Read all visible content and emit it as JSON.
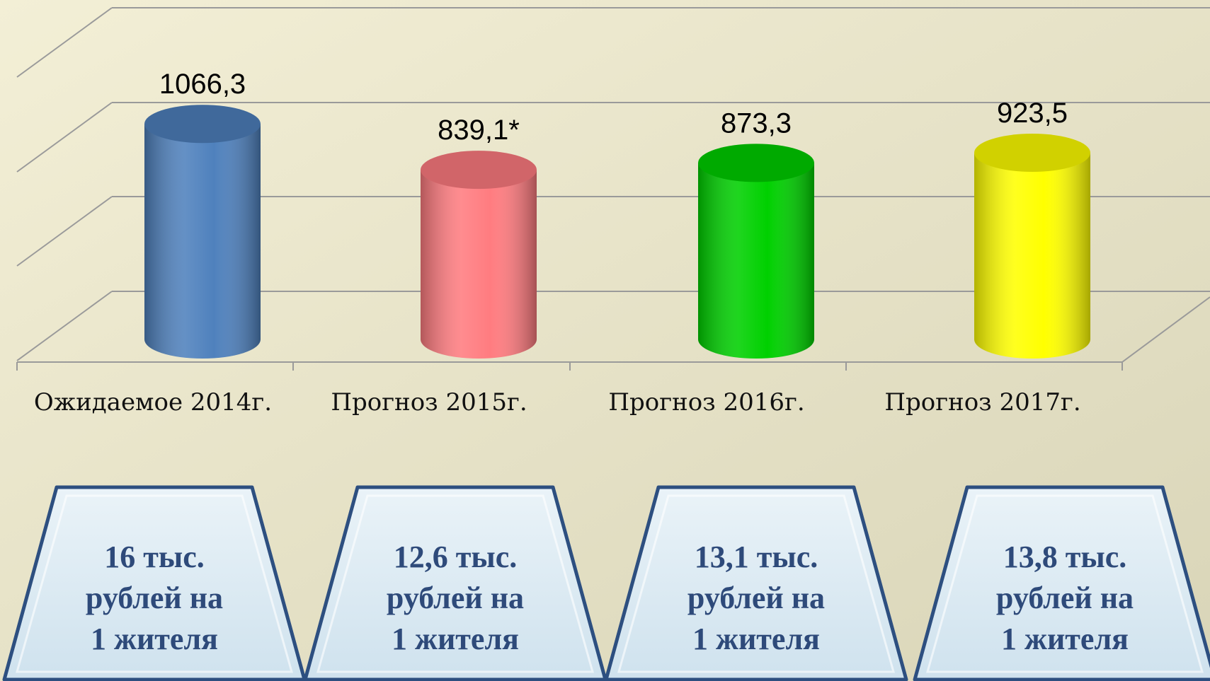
{
  "chart_data": {
    "type": "cylinder",
    "categories": [
      "Ожидаемое 2014г.",
      "Прогноз 2015г.",
      "Прогноз 2016г.",
      "Прогноз 2017г."
    ],
    "series": [
      {
        "values": [
          1066.3,
          839.1,
          873.3,
          923.5
        ],
        "value_labels": [
          "1066,3",
          "839,1*",
          "873,3",
          "923,5"
        ],
        "colors": [
          "#4f81bd",
          "#ff7c80",
          "#00d000",
          "#ffff00"
        ]
      }
    ],
    "ylim": [
      0,
      1200
    ],
    "annotations": [
      [
        "16 тыс.",
        "рублей на",
        "1 жителя"
      ],
      [
        "12,6 тыс.",
        "рублей на",
        "1 жителя"
      ],
      [
        "13,1 тыс.",
        "рублей на",
        "1 жителя"
      ],
      [
        "13,8 тыс.",
        "рублей на",
        "1 жителя"
      ]
    ]
  }
}
